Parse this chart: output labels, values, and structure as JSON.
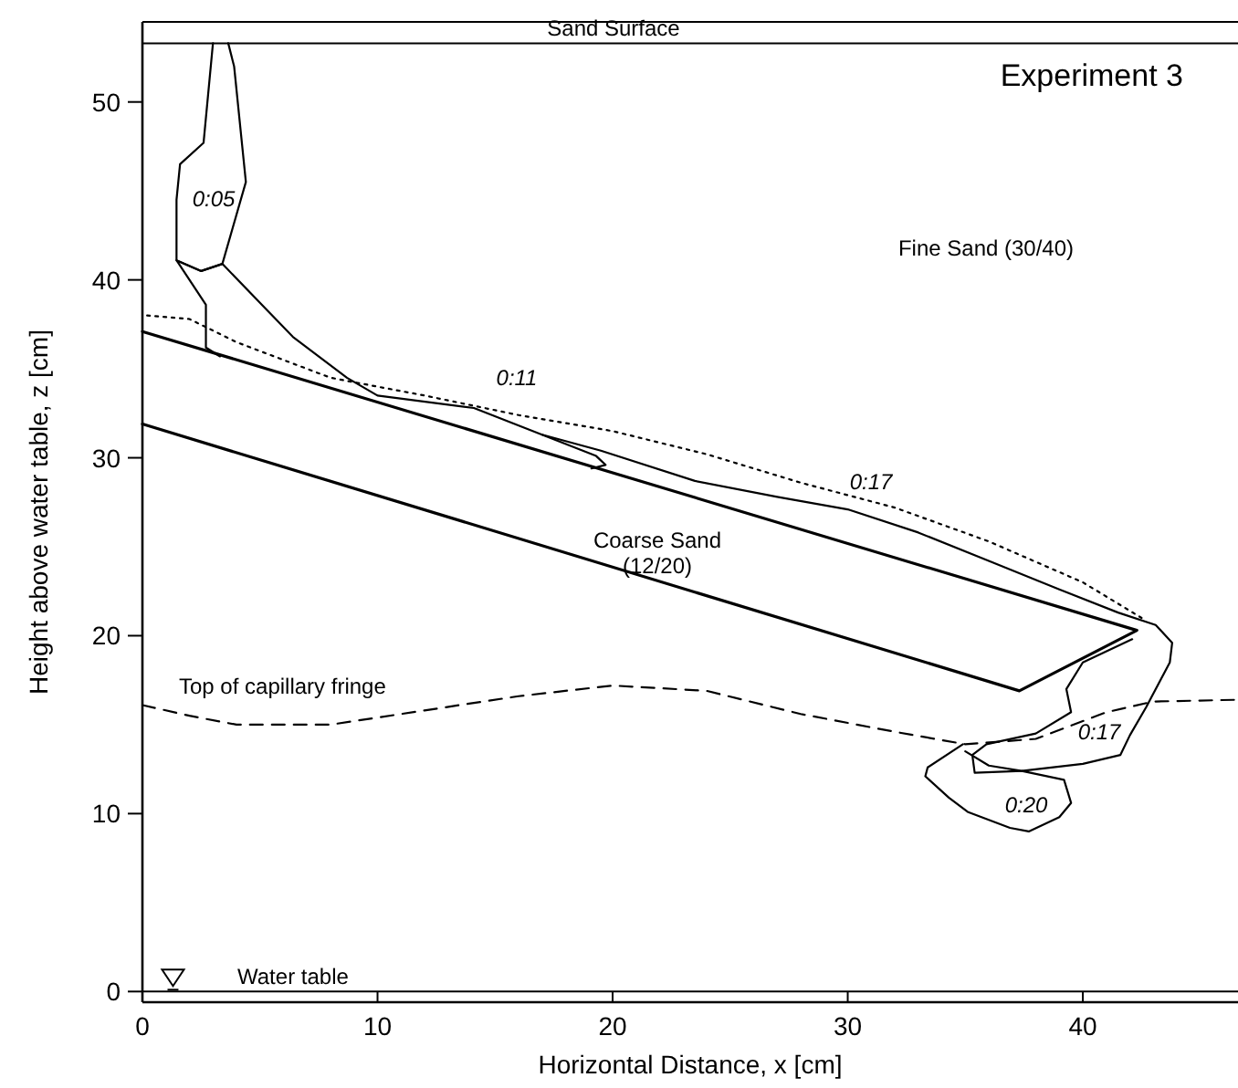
{
  "chart_data": {
    "type": "line",
    "title": "Experiment 3",
    "xlabel": "Horizontal Distance, x [cm]",
    "ylabel": "Height above water table, z [cm]",
    "xlim": [
      0,
      46.6
    ],
    "ylim": [
      -0.6,
      54.5
    ],
    "xticks": [
      0,
      10,
      20,
      30,
      40
    ],
    "yticks": [
      0,
      10,
      20,
      30,
      40,
      50
    ],
    "ref_lines": [
      {
        "axis": "y",
        "value": 53.3,
        "label": "Sand Surface"
      },
      {
        "axis": "y",
        "value": 0,
        "label": "Water table"
      }
    ],
    "series": [
      {
        "color": "#000000",
        "x": [
          0,
          42.3,
          37.3,
          0
        ],
        "values": [
          37.1,
          20.3,
          16.9,
          31.9
        ]
      },
      {
        "name": "Top of capillary fringe",
        "color": "#000000",
        "line_style": "dashed",
        "x": [
          0,
          2,
          4,
          8,
          12,
          16,
          20,
          24,
          28,
          32,
          35,
          38,
          41,
          43,
          46.6
        ],
        "values": [
          16.1,
          15.5,
          15,
          15,
          15.8,
          16.6,
          17.2,
          16.9,
          15.6,
          14.6,
          13.9,
          14.2,
          15.7,
          16.3,
          16.4
        ]
      },
      {
        "color": "#000000",
        "line_style": "dotted",
        "x": [
          0.2,
          2,
          4,
          8,
          12,
          16,
          20,
          24,
          28,
          32,
          36,
          40,
          42.5
        ],
        "values": [
          38,
          37.8,
          36.5,
          34.5,
          33.5,
          32.4,
          31.5,
          30.2,
          28.6,
          27.2,
          25.3,
          23,
          21
        ]
      },
      {
        "color": "#000000",
        "x": [
          3,
          2.6,
          1.6,
          1.45,
          1.45,
          2.5,
          3.4,
          4.4,
          3.9,
          3.65
        ],
        "values": [
          53.3,
          47.7,
          46.5,
          44.5,
          41.1,
          40.5,
          40.9,
          45.5,
          52,
          53.3
        ]
      },
      {
        "color": "#000000",
        "x": [
          3.3,
          2.7,
          2.7,
          1.45,
          2.5,
          3.4,
          5.3,
          6.4,
          8.7,
          10,
          14.1,
          19.3,
          19.7,
          19.1
        ],
        "values": [
          35.7,
          36.2,
          38.6,
          41.1,
          40.5,
          40.9,
          38.3,
          36.8,
          34.5,
          33.5,
          32.8,
          30.1,
          29.6,
          29.4
        ]
      },
      {
        "color": "#000000",
        "x": [
          17,
          19.5,
          23.5,
          27,
          30,
          33,
          36,
          39,
          41.5,
          43.1,
          43.8,
          43.7,
          42.7,
          42,
          41.6,
          40,
          37.4,
          35.4,
          35.3,
          35.9,
          38,
          39.5,
          39.3,
          40,
          42.1
        ],
        "values": [
          31.3,
          30.4,
          28.7,
          27.8,
          27.1,
          25.8,
          24.2,
          22.6,
          21.3,
          20.6,
          19.6,
          18.5,
          16,
          14.4,
          13.3,
          12.8,
          12.4,
          12.3,
          13.3,
          13.9,
          14.5,
          15.7,
          17,
          18.5,
          19.8
        ]
      },
      {
        "color": "#000000",
        "x": [
          34.9,
          33.4,
          33.3,
          34.3,
          35.1,
          36.9,
          37.7,
          39,
          39.5,
          39.2,
          37.4,
          36,
          35
        ],
        "values": [
          13.9,
          12.6,
          12.1,
          10.9,
          10.1,
          9.2,
          9,
          9.8,
          10.6,
          11.9,
          12.4,
          12.7,
          13.5
        ]
      }
    ],
    "annotations": [
      "0:05",
      "0:11",
      "0:17",
      "0:17",
      "0:20",
      "Fine Sand (30/40)",
      "Coarse Sand\n(12/20)"
    ]
  }
}
